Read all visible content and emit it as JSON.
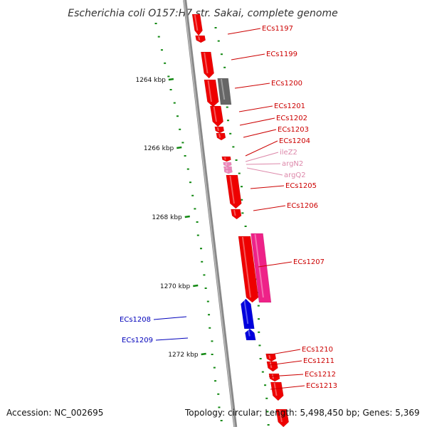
{
  "title": "Escherichia coli O157:H7 str. Sakai, complete genome",
  "footer": {
    "accession": "Accession: NC_002695",
    "topology": "Topology: circular; Length: 5,498,450 bp; Genes: 5,369"
  },
  "colors": {
    "forward_gene": "#ee0000",
    "pseudo_gene": "#666666",
    "rna_gene": "#ee88bb",
    "tall_pink_gene": "#ee2288",
    "reverse_gene": "#0000dd",
    "backbone": "#888888",
    "gc_dots": "#118811",
    "label_red": "#cc0000",
    "label_pink": "#dd88aa",
    "label_blue": "#0000bb"
  },
  "ticks": [
    {
      "label": "1264 kbp"
    },
    {
      "label": "1266 kbp"
    },
    {
      "label": "1268 kbp"
    },
    {
      "label": "1270 kbp"
    },
    {
      "label": "1272 kbp"
    }
  ],
  "genes": [
    {
      "label": "ECs1197",
      "color": "label_red"
    },
    {
      "label": "ECs1199",
      "color": "label_red"
    },
    {
      "label": "ECs1200",
      "color": "label_red"
    },
    {
      "label": "ECs1201",
      "color": "label_red"
    },
    {
      "label": "ECs1202",
      "color": "label_red"
    },
    {
      "label": "ECs1203",
      "color": "label_red"
    },
    {
      "label": "ECs1204",
      "color": "label_red"
    },
    {
      "label": "ileZ2",
      "color": "label_pink"
    },
    {
      "label": "argN2",
      "color": "label_pink"
    },
    {
      "label": "argQ2",
      "color": "label_pink"
    },
    {
      "label": "ECs1205",
      "color": "label_red"
    },
    {
      "label": "ECs1206",
      "color": "label_red"
    },
    {
      "label": "ECs1207",
      "color": "label_red"
    },
    {
      "label": "ECs1208",
      "color": "label_blue"
    },
    {
      "label": "ECs1209",
      "color": "label_blue"
    },
    {
      "label": "ECs1210",
      "color": "label_red"
    },
    {
      "label": "ECs1211",
      "color": "label_red"
    },
    {
      "label": "ECs1212",
      "color": "label_red"
    },
    {
      "label": "ECs1213",
      "color": "label_red"
    }
  ]
}
